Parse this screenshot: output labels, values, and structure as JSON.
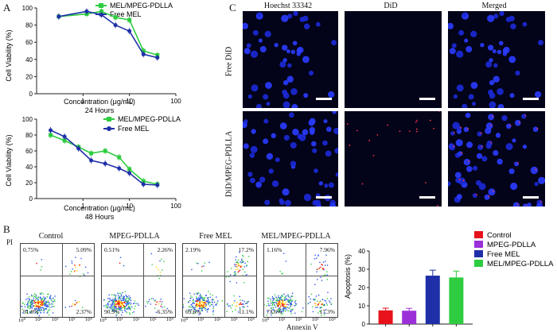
{
  "panels": {
    "A": "A",
    "B": "B",
    "C": "C"
  },
  "colors": {
    "mel": "#2ecc40",
    "free": "#1f2fa8",
    "control": "#e8121b",
    "mpeg": "#9b30d9"
  },
  "chartA1": {
    "legend": [
      "MEL/MPEG-PDLLA",
      "Free MEL"
    ],
    "ylabel": "Cell Viability (%)",
    "xlabel": "Concentration (μg/mL)",
    "subtitle": "24 Hours",
    "yticks": [
      "0",
      "20",
      "40",
      "60",
      "80",
      "100"
    ],
    "xticks": [
      "1",
      "10",
      "100"
    ]
  },
  "chartA2": {
    "legend": [
      "MEL/MPEG-PDLLA",
      "Free MEL"
    ],
    "ylabel": "Cell Viability (%)",
    "xlabel": "Concentration (μg/mL)",
    "subtitle": "48 Hours",
    "yticks": [
      "0",
      "20",
      "40",
      "60",
      "80",
      "100"
    ],
    "xticks": [
      "1",
      "10",
      "100"
    ]
  },
  "microscopy": {
    "columns": [
      "Hoechst 33342",
      "DiD",
      "Merged"
    ],
    "rows": [
      "Free DiD",
      "DiD/MPEG-PDLLA"
    ]
  },
  "flow": {
    "yaxis": "PI",
    "xaxis": "Annexin V",
    "ticks": [
      "10⁰",
      "10¹",
      "10²",
      "10³",
      "10⁴"
    ],
    "plots": [
      {
        "title": "Control",
        "ul": "0.75%",
        "ur": "5.09%",
        "ll": "91.8%",
        "lr": "2.37%"
      },
      {
        "title": "MPEG-PDLLA",
        "ul": "0.51%",
        "ur": "2.26%",
        "ll": "90.9%",
        "lr": "6.35%"
      },
      {
        "title": "Free MEL",
        "ul": "2.19%",
        "ur": "17.2%",
        "ll": "69.6%",
        "lr": "11.1%"
      },
      {
        "title": "MEL/MPEG-PDLLA",
        "ul": "1.16%",
        "ur": "7.96%",
        "ll": "73.6%",
        "lr": "17.3%"
      }
    ]
  },
  "chart_data": [
    {
      "type": "scatter",
      "title": "24 Hours",
      "xlabel": "Concentration (μg/mL)",
      "ylabel": "Cell Viability (%)",
      "xscale": "log",
      "xlim": [
        0.1,
        100
      ],
      "ylim": [
        0,
        100
      ],
      "series": [
        {
          "name": "MEL/MPEG-PDLLA",
          "x": [
            0.3,
            1.2,
            2.5,
            5,
            10,
            20,
            40
          ],
          "y": [
            90,
            93,
            96,
            89,
            86,
            50,
            45
          ]
        },
        {
          "name": "Free MEL",
          "x": [
            0.3,
            1.2,
            2.5,
            5,
            10,
            20,
            40
          ],
          "y": [
            90,
            96,
            92,
            80,
            73,
            46,
            42
          ]
        }
      ]
    },
    {
      "type": "scatter",
      "title": "48 Hours",
      "xlabel": "Concentration (μg/mL)",
      "ylabel": "Cell Viability (%)",
      "xscale": "log",
      "xlim": [
        0.1,
        100
      ],
      "ylim": [
        0,
        100
      ],
      "series": [
        {
          "name": "MEL/MPEG-PDLLA",
          "x": [
            0.2,
            0.4,
            0.8,
            1.5,
            3,
            6,
            10,
            20,
            40
          ],
          "y": [
            80,
            73,
            65,
            57,
            60,
            52,
            37,
            22,
            18
          ]
        },
        {
          "name": "Free MEL",
          "x": [
            0.2,
            0.4,
            0.8,
            1.5,
            3,
            6,
            10,
            20,
            40
          ],
          "y": [
            86,
            78,
            63,
            48,
            44,
            38,
            32,
            18,
            17
          ]
        }
      ]
    },
    {
      "type": "bar",
      "ylabel": "Apoptosis (%)",
      "ylim": [
        0,
        40
      ],
      "yticks": [
        "0",
        "10",
        "20",
        "30",
        "40"
      ],
      "categories": [
        "Control",
        "MPEG-PDLLA",
        "Free MEL",
        "MEL/MPEG-PDLLA"
      ],
      "values": [
        7.5,
        7.3,
        26.5,
        25.5
      ],
      "errors": [
        1.2,
        1.3,
        3.0,
        3.5
      ]
    }
  ]
}
